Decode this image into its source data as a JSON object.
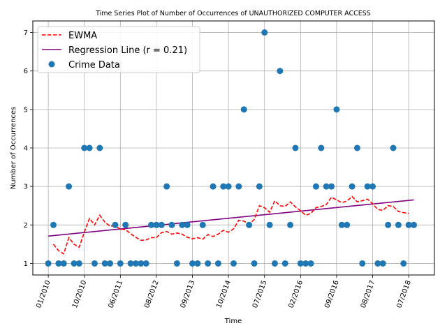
{
  "chart_data": {
    "type": "scatter",
    "title": "Time Series Plot of Number of Occurrences of UNAUTHORIZED COMPUTER ACCESS",
    "xlabel": "Time",
    "ylabel": "Number of Occurrences",
    "ylim": [
      0.7,
      7.3
    ],
    "yticks": [
      1,
      2,
      3,
      4,
      5,
      6,
      7
    ],
    "grid": true,
    "legend_position": "top-left",
    "x_tick_labels": [
      "01/2010",
      "10/2010",
      "06/2011",
      "08/2012",
      "09/2013",
      "10/2014",
      "07/2015",
      "02/2016",
      "09/2016",
      "08/2017",
      "07/2018"
    ],
    "x_tick_positions": [
      0,
      7,
      14,
      21,
      28,
      35,
      42,
      49,
      56,
      63,
      70
    ],
    "x_range": [
      -3,
      75
    ],
    "series": [
      {
        "name": "Crime Data",
        "kind": "points",
        "color": "#1f77b4",
        "points": [
          [
            0,
            1
          ],
          [
            1,
            2
          ],
          [
            2,
            1
          ],
          [
            3,
            1
          ],
          [
            4,
            3
          ],
          [
            5,
            1
          ],
          [
            6,
            1
          ],
          [
            7,
            4
          ],
          [
            8,
            4
          ],
          [
            9,
            1
          ],
          [
            10,
            4
          ],
          [
            11,
            1
          ],
          [
            12,
            1
          ],
          [
            13,
            2
          ],
          [
            14,
            1
          ],
          [
            15,
            2
          ],
          [
            16,
            1
          ],
          [
            17,
            1
          ],
          [
            18,
            1
          ],
          [
            19,
            1
          ],
          [
            20,
            2
          ],
          [
            21,
            2
          ],
          [
            22,
            2
          ],
          [
            23,
            3
          ],
          [
            24,
            2
          ],
          [
            25,
            1
          ],
          [
            26,
            2
          ],
          [
            27,
            2
          ],
          [
            28,
            1
          ],
          [
            29,
            1
          ],
          [
            30,
            2
          ],
          [
            31,
            1
          ],
          [
            32,
            3
          ],
          [
            33,
            1
          ],
          [
            34,
            3
          ],
          [
            35,
            3
          ],
          [
            36,
            1
          ],
          [
            37,
            3
          ],
          [
            38,
            5
          ],
          [
            39,
            2
          ],
          [
            40,
            1
          ],
          [
            41,
            3
          ],
          [
            42,
            7
          ],
          [
            43,
            2
          ],
          [
            44,
            1
          ],
          [
            45,
            6
          ],
          [
            46,
            1
          ],
          [
            47,
            2
          ],
          [
            48,
            4
          ],
          [
            49,
            1
          ],
          [
            50,
            1
          ],
          [
            51,
            1
          ],
          [
            52,
            3
          ],
          [
            53,
            4
          ],
          [
            54,
            3
          ],
          [
            55,
            3
          ],
          [
            56,
            5
          ],
          [
            57,
            2
          ],
          [
            58,
            2
          ],
          [
            59,
            3
          ],
          [
            60,
            4
          ],
          [
            61,
            1
          ],
          [
            62,
            3
          ],
          [
            63,
            3
          ],
          [
            64,
            1
          ],
          [
            65,
            1
          ],
          [
            66,
            2
          ],
          [
            67,
            4
          ],
          [
            68,
            2
          ],
          [
            69,
            1
          ],
          [
            70,
            2
          ],
          [
            71,
            2
          ]
        ]
      },
      {
        "name": "EWMA",
        "kind": "dashed-line",
        "color": "#ff0000",
        "x_start": 1,
        "values": [
          1.5,
          1.33,
          1.25,
          1.67,
          1.5,
          1.42,
          1.81,
          2.17,
          2.0,
          2.25,
          2.07,
          1.97,
          1.98,
          1.89,
          1.88,
          1.77,
          1.68,
          1.6,
          1.61,
          1.67,
          1.67,
          1.8,
          1.83,
          1.76,
          1.79,
          1.76,
          1.68,
          1.64,
          1.67,
          1.63,
          1.75,
          1.7,
          1.76,
          1.86,
          1.81,
          1.9,
          2.12,
          2.1,
          2.02,
          2.14,
          2.5,
          2.45,
          2.33,
          2.63,
          2.5,
          2.48,
          2.6,
          2.47,
          2.37,
          2.25,
          2.3,
          2.45,
          2.48,
          2.53,
          2.72,
          2.65,
          2.58,
          2.62,
          2.74,
          2.6,
          2.63,
          2.67,
          2.55,
          2.4,
          2.38,
          2.5,
          2.48,
          2.35,
          2.32,
          2.3
        ]
      },
      {
        "name": "Regression Line (r = 0.21)",
        "kind": "line",
        "color": "#800080",
        "x": [
          0,
          71
        ],
        "y": [
          1.71,
          2.65
        ]
      }
    ]
  }
}
